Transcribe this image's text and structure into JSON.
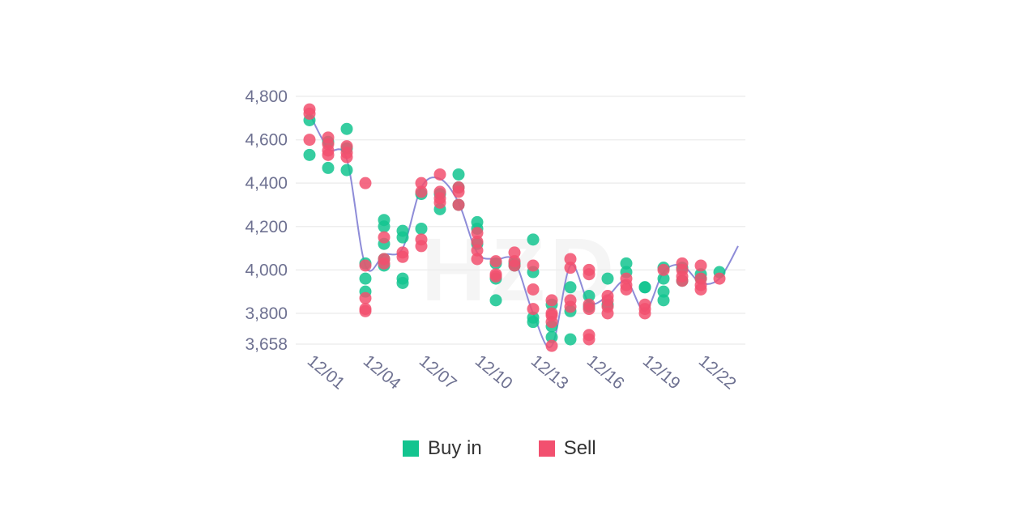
{
  "watermark": "HZD",
  "chart_data": {
    "type": "scatter",
    "y_ticks": [
      4800,
      4600,
      4400,
      4200,
      4000,
      3800,
      3658
    ],
    "ylim": [
      3658,
      4800
    ],
    "x_tick_labels": [
      "12/01",
      "12/04",
      "12/07",
      "12/10",
      "12/13",
      "12/16",
      "12/19",
      "12/22"
    ],
    "x_tick_days": [
      1,
      4,
      7,
      10,
      13,
      16,
      19,
      22
    ],
    "xlim": [
      1,
      24
    ],
    "grid": true,
    "legend": [
      {
        "label": "Buy in",
        "color": "#13c48f"
      },
      {
        "label": "Sell",
        "color": "#f2506f"
      }
    ],
    "line_color": "#8e8cd8",
    "line": [
      [
        1,
        4720
      ],
      [
        2,
        4560
      ],
      [
        3,
        4510
      ],
      [
        4,
        4020
      ],
      [
        5,
        4070
      ],
      [
        6,
        4100
      ],
      [
        7,
        4380
      ],
      [
        8,
        4420
      ],
      [
        9,
        4310
      ],
      [
        10,
        4080
      ],
      [
        11,
        4050
      ],
      [
        12,
        4040
      ],
      [
        13,
        3800
      ],
      [
        14,
        3650
      ],
      [
        15,
        4020
      ],
      [
        16,
        3850
      ],
      [
        17,
        3880
      ],
      [
        18,
        3950
      ],
      [
        19,
        3810
      ],
      [
        20,
        3990
      ],
      [
        21,
        4020
      ],
      [
        22,
        3940
      ],
      [
        23,
        3960
      ],
      [
        24,
        4110
      ]
    ],
    "series": [
      {
        "name": "Buy in",
        "color": "#13c48f",
        "points": [
          [
            1,
            4690
          ],
          [
            1,
            4530
          ],
          [
            2,
            4470
          ],
          [
            2,
            4590
          ],
          [
            3,
            4650
          ],
          [
            3,
            4460
          ],
          [
            3,
            4560
          ],
          [
            4,
            4030
          ],
          [
            4,
            3960
          ],
          [
            4,
            3900
          ],
          [
            5,
            4230
          ],
          [
            5,
            4200
          ],
          [
            5,
            4120
          ],
          [
            5,
            4050
          ],
          [
            5,
            4020
          ],
          [
            6,
            4180
          ],
          [
            6,
            4150
          ],
          [
            6,
            3960
          ],
          [
            6,
            3940
          ],
          [
            7,
            4350
          ],
          [
            7,
            4190
          ],
          [
            8,
            4280
          ],
          [
            8,
            4350
          ],
          [
            9,
            4440
          ],
          [
            9,
            4380
          ],
          [
            9,
            4300
          ],
          [
            10,
            4220
          ],
          [
            10,
            4190
          ],
          [
            10,
            4120
          ],
          [
            11,
            4030
          ],
          [
            11,
            3960
          ],
          [
            11,
            3860
          ],
          [
            12,
            4030
          ],
          [
            12,
            4020
          ],
          [
            13,
            4140
          ],
          [
            13,
            3990
          ],
          [
            13,
            3780
          ],
          [
            13,
            3760
          ],
          [
            14,
            3740
          ],
          [
            14,
            3690
          ],
          [
            14,
            3840
          ],
          [
            15,
            3920
          ],
          [
            15,
            3810
          ],
          [
            15,
            3680
          ],
          [
            16,
            3880
          ],
          [
            16,
            3830
          ],
          [
            17,
            3960
          ],
          [
            17,
            3840
          ],
          [
            18,
            4030
          ],
          [
            18,
            3990
          ],
          [
            19,
            3920
          ],
          [
            19,
            3920
          ],
          [
            20,
            4010
          ],
          [
            20,
            3960
          ],
          [
            20,
            3900
          ],
          [
            20,
            3860
          ],
          [
            21,
            4010
          ],
          [
            21,
            3950
          ],
          [
            22,
            3980
          ],
          [
            22,
            3960
          ],
          [
            23,
            3990
          ]
        ]
      },
      {
        "name": "Sell",
        "color": "#f2506f",
        "points": [
          [
            1,
            4740
          ],
          [
            1,
            4720
          ],
          [
            1,
            4600
          ],
          [
            2,
            4610
          ],
          [
            2,
            4580
          ],
          [
            2,
            4550
          ],
          [
            2,
            4530
          ],
          [
            3,
            4570
          ],
          [
            3,
            4540
          ],
          [
            3,
            4520
          ],
          [
            4,
            4400
          ],
          [
            4,
            3820
          ],
          [
            4,
            3810
          ],
          [
            4,
            3870
          ],
          [
            4,
            4020
          ],
          [
            5,
            4150
          ],
          [
            5,
            4050
          ],
          [
            5,
            4030
          ],
          [
            6,
            4080
          ],
          [
            6,
            4060
          ],
          [
            7,
            4400
          ],
          [
            7,
            4360
          ],
          [
            7,
            4140
          ],
          [
            7,
            4110
          ],
          [
            8,
            4440
          ],
          [
            8,
            4360
          ],
          [
            8,
            4330
          ],
          [
            8,
            4310
          ],
          [
            9,
            4380
          ],
          [
            9,
            4360
          ],
          [
            9,
            4300
          ],
          [
            10,
            4170
          ],
          [
            10,
            4130
          ],
          [
            10,
            4090
          ],
          [
            10,
            4050
          ],
          [
            11,
            4040
          ],
          [
            11,
            3980
          ],
          [
            11,
            3970
          ],
          [
            12,
            4080
          ],
          [
            12,
            4040
          ],
          [
            12,
            4020
          ],
          [
            13,
            4020
          ],
          [
            13,
            3910
          ],
          [
            13,
            3820
          ],
          [
            14,
            3860
          ],
          [
            14,
            3800
          ],
          [
            14,
            3790
          ],
          [
            14,
            3760
          ],
          [
            14,
            3650
          ],
          [
            15,
            4050
          ],
          [
            15,
            4010
          ],
          [
            15,
            3860
          ],
          [
            15,
            3830
          ],
          [
            16,
            4000
          ],
          [
            16,
            3980
          ],
          [
            16,
            3840
          ],
          [
            16,
            3820
          ],
          [
            16,
            3700
          ],
          [
            16,
            3680
          ],
          [
            17,
            3880
          ],
          [
            17,
            3860
          ],
          [
            17,
            3830
          ],
          [
            17,
            3800
          ],
          [
            18,
            3960
          ],
          [
            18,
            3930
          ],
          [
            18,
            3910
          ],
          [
            19,
            3840
          ],
          [
            19,
            3820
          ],
          [
            19,
            3800
          ],
          [
            20,
            4000
          ],
          [
            21,
            4030
          ],
          [
            21,
            4000
          ],
          [
            21,
            3970
          ],
          [
            21,
            3950
          ],
          [
            22,
            4020
          ],
          [
            22,
            3960
          ],
          [
            22,
            3930
          ],
          [
            22,
            3910
          ],
          [
            23,
            3960
          ]
        ]
      }
    ]
  }
}
